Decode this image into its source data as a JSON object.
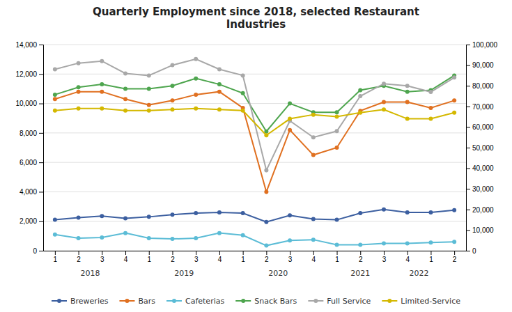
{
  "chart_data": {
    "type": "line",
    "title": "Quarterly Employment since 2018, selected Restaurant\nIndustries",
    "categories": [
      "1",
      "2",
      "3",
      "4",
      "1",
      "2",
      "3",
      "4",
      "1",
      "2",
      "3",
      "4",
      "1",
      "2",
      "3",
      "4",
      "1",
      "2"
    ],
    "annotations": [
      {
        "text": "2018",
        "x": 2.5
      },
      {
        "text": "2019",
        "x": 6.5
      },
      {
        "text": "2020",
        "x": 10.5
      },
      {
        "text": "2021",
        "x": 14.0
      },
      {
        "text": "2022",
        "x": 16.5
      }
    ],
    "series": [
      {
        "name": "Breweries",
        "color": "#3C5FA0",
        "values": [
          2100,
          2250,
          2350,
          2200,
          2300,
          2450,
          2550,
          2600,
          2550,
          1950,
          2400,
          2150,
          2100,
          2550,
          2800,
          2600,
          2600,
          2750
        ]
      },
      {
        "name": "Bars",
        "color": "#E07020",
        "values": [
          10300,
          10800,
          10800,
          10300,
          9900,
          10200,
          10600,
          10800,
          9700,
          4000,
          8200,
          6500,
          7000,
          9500,
          10100,
          10100,
          9700,
          10200
        ]
      },
      {
        "name": "Cafeterias",
        "color": "#5BBCD6",
        "values": [
          1100,
          850,
          900,
          1200,
          850,
          800,
          850,
          1200,
          1050,
          350,
          700,
          750,
          400,
          400,
          500,
          500,
          550,
          600
        ]
      },
      {
        "name": "Snack Bars",
        "color": "#4EA54E",
        "values": [
          10600,
          11100,
          11300,
          11000,
          11000,
          11200,
          11700,
          11300,
          10700,
          8100,
          10000,
          9400,
          9400,
          10900,
          11200,
          10800,
          10900,
          11900
        ]
      },
      {
        "name": "Full Service",
        "color": "#A8A8A8",
        "axis": "y2",
        "values": [
          88000,
          91000,
          92000,
          86000,
          85000,
          90000,
          93000,
          88000,
          85000,
          39000,
          63000,
          55000,
          58000,
          75000,
          81000,
          80000,
          77000,
          84000
        ]
      },
      {
        "name": "Limited-Service",
        "color": "#D4B800",
        "axis": "y2",
        "values": [
          68000,
          69000,
          69000,
          68000,
          68000,
          68500,
          69000,
          68500,
          68000,
          56000,
          64000,
          66000,
          65000,
          67000,
          68500,
          64000,
          64000,
          67000
        ]
      }
    ],
    "ylim": [
      0,
      14000
    ],
    "yticks": [
      0,
      {
        "value": 2000,
        "label": "2,000"
      },
      {
        "value": 4000,
        "label": "4,000"
      },
      {
        "value": 6000,
        "label": "6,000"
      },
      {
        "value": 8000,
        "label": "8,000"
      },
      {
        "value": 10000,
        "label": "10,000"
      },
      {
        "value": 12000,
        "label": "12,000"
      },
      {
        "value": 14000,
        "label": "14,000"
      }
    ],
    "y2lim": [
      0,
      100000
    ],
    "y2ticks": [
      0,
      {
        "value": 10000,
        "label": "10,000"
      },
      {
        "value": 20000,
        "label": "20,000"
      },
      {
        "value": 30000,
        "label": "30,000"
      },
      {
        "value": 40000,
        "label": "40,000"
      },
      {
        "value": 50000,
        "label": "50,000"
      },
      {
        "value": 60000,
        "label": "60,000"
      },
      {
        "value": 70000,
        "label": "70,000"
      },
      {
        "value": 80000,
        "label": "80,000"
      },
      {
        "value": 90000,
        "label": "90,000"
      },
      {
        "value": 100000,
        "label": "100,000"
      }
    ],
    "grid": true,
    "legend": "bottom",
    "marker": "circle",
    "line_style": "solid"
  }
}
